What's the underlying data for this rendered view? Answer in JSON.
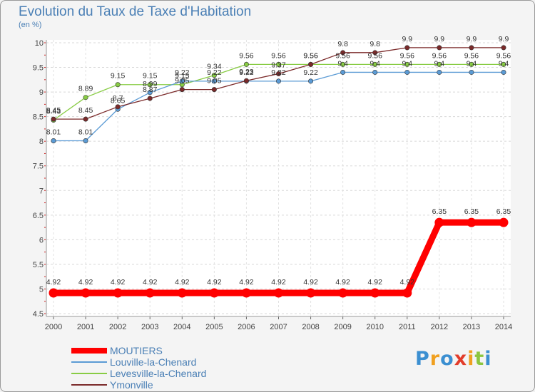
{
  "title": "Evolution du Taux de Taxe d'Habitation",
  "subtitle": "(en %)",
  "logo": {
    "letters": [
      "P",
      "r",
      "o",
      "x",
      "i",
      "t",
      "i"
    ],
    "colors": [
      "#3b8fd1",
      "#f0a020",
      "#3b8fd1",
      "#e23c2a",
      "#f0a020",
      "#8cc63f",
      "#3b8fd1"
    ]
  },
  "chart_data": {
    "type": "line",
    "title": "Evolution du Taux de Taxe d'Habitation",
    "ylabel": "(en %)",
    "xlabel": "",
    "x": [
      2000,
      2001,
      2002,
      2003,
      2004,
      2005,
      2006,
      2007,
      2008,
      2009,
      2010,
      2011,
      2012,
      2013,
      2014
    ],
    "ylim": [
      4.5,
      10
    ],
    "yticks": [
      "4.5",
      "5",
      "5.5",
      "6",
      "6.5",
      "7",
      "7.5",
      "8",
      "8.5",
      "9",
      "9.5",
      "10"
    ],
    "grid": true,
    "legend_position": "bottom-left",
    "series": [
      {
        "name": "MOUTIERS",
        "color": "#ff0000",
        "values": [
          4.92,
          4.92,
          4.92,
          4.92,
          4.92,
          4.92,
          4.92,
          4.92,
          4.92,
          4.92,
          4.92,
          4.92,
          6.35,
          6.35,
          6.35
        ],
        "labels": [
          "4.92",
          "4.92",
          "4.92",
          "4.92",
          "4.92",
          "4.92",
          "4.92",
          "4.92",
          "4.92",
          "4.92",
          "4.92",
          "4.92",
          "6.35",
          "6.35",
          "6.35"
        ]
      },
      {
        "name": "Louville-la-Chenard",
        "color": "#5b9bd5",
        "values": [
          8.01,
          8.01,
          8.65,
          8.99,
          9.22,
          9.22,
          9.22,
          9.22,
          9.22,
          9.4,
          9.4,
          9.4,
          9.4,
          9.4,
          9.4
        ],
        "labels": [
          "8.01",
          "8.01",
          "8.65",
          "8.99",
          "9.22",
          "9.22",
          "9.22",
          "9.22",
          "9.22",
          "9.4",
          "9.4",
          "9.4",
          "9.4",
          "9.4",
          "9.4"
        ]
      },
      {
        "name": "Levesville-la-Chenard",
        "color": "#88cc44",
        "values": [
          8.43,
          8.89,
          9.15,
          9.15,
          9.15,
          9.34,
          9.56,
          9.56,
          9.56,
          9.56,
          9.56,
          9.56,
          9.56,
          9.56,
          9.56
        ],
        "labels": [
          "8.43",
          "8.89",
          "9.15",
          "9.15",
          "9.15",
          "9.34",
          "9.56",
          "9.56",
          "9.56",
          "9.56",
          "9.56",
          "9.56",
          "9.56",
          "9.56",
          "9.56"
        ]
      },
      {
        "name": "Ymonville",
        "color": "#7b2a2a",
        "values": [
          8.45,
          8.45,
          8.7,
          8.87,
          9.05,
          9.05,
          9.23,
          9.37,
          9.56,
          9.8,
          9.8,
          9.9,
          9.9,
          9.9,
          9.9
        ],
        "labels": [
          "8.45",
          "8.45",
          "8.7",
          "8.87",
          "9.05",
          "9.05",
          "9.23",
          "9.37",
          "9.56",
          "9.8",
          "9.8",
          "9.9",
          "9.9",
          "9.9",
          "9.9"
        ]
      }
    ]
  }
}
